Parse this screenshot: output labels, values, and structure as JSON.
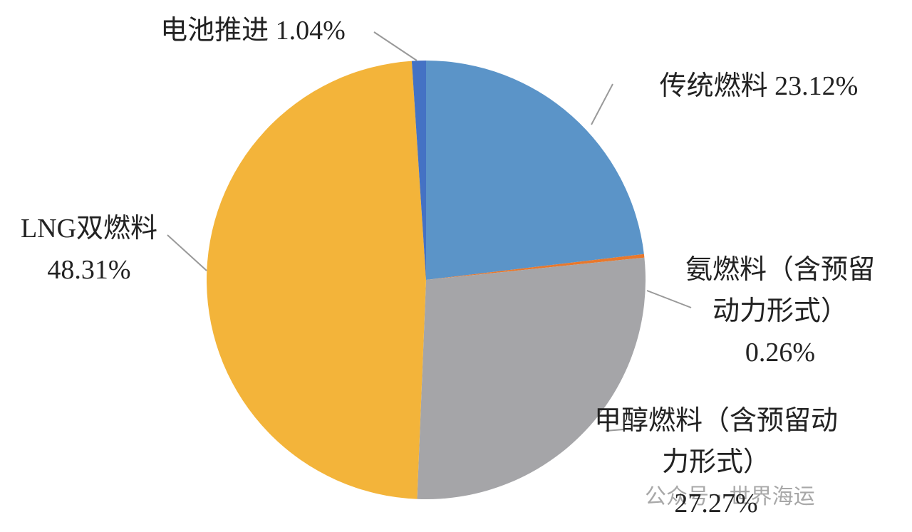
{
  "chart_data": {
    "type": "pie",
    "categories": [
      "传统燃料",
      "氨燃料（含预留动力形式）",
      "甲醇燃料（含预留动力形式）",
      "LNG双燃料",
      "电池推进"
    ],
    "values": [
      23.12,
      0.26,
      27.27,
      48.31,
      1.04
    ],
    "value_labels": [
      "23.12%",
      "0.26%",
      "27.27%",
      "48.31%",
      "1.04%"
    ],
    "colors": [
      "#5b94c8",
      "#e8782c",
      "#a5a5a8",
      "#f3b43a",
      "#4472c4"
    ]
  },
  "watermark": "公众号 · 世界海运"
}
